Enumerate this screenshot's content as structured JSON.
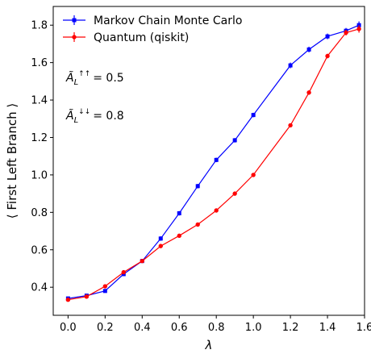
{
  "chart_data": {
    "type": "line",
    "xlabel": "λ",
    "ylabel": "⟨ First Left Branch ⟩",
    "xlim": [
      -0.08,
      1.6
    ],
    "ylim": [
      0.25,
      1.9
    ],
    "xticks": [
      0.0,
      0.2,
      0.4,
      0.6,
      0.8,
      1.0,
      1.2,
      1.4,
      1.6
    ],
    "xtick_labels": [
      "0.0",
      "0.2",
      "0.4",
      "0.6",
      "0.8",
      "1.0",
      "1.2",
      "1.4",
      "1.6"
    ],
    "yticks": [
      0.4,
      0.6,
      0.8,
      1.0,
      1.2,
      1.4,
      1.6,
      1.8
    ],
    "ytick_labels": [
      "0.4",
      "0.6",
      "0.8",
      "1.0",
      "1.2",
      "1.4",
      "1.6",
      "1.8"
    ],
    "grid": false,
    "legend_position": "top-left",
    "series": [
      {
        "name": "Markov Chain Monte Carlo",
        "color": "#0000ff",
        "marker": "square",
        "x": [
          0.0,
          0.1,
          0.2,
          0.3,
          0.4,
          0.5,
          0.6,
          0.7,
          0.8,
          0.9,
          1.0,
          1.2,
          1.3,
          1.4,
          1.5,
          1.57
        ],
        "y": [
          0.34,
          0.355,
          0.38,
          0.47,
          0.54,
          0.66,
          0.795,
          0.94,
          1.08,
          1.185,
          1.32,
          1.585,
          1.67,
          1.74,
          1.77,
          1.8
        ],
        "yerr": [
          0.008,
          0.008,
          0.008,
          0.01,
          0.01,
          0.012,
          0.012,
          0.012,
          0.012,
          0.012,
          0.012,
          0.015,
          0.015,
          0.015,
          0.015,
          0.02
        ]
      },
      {
        "name": "Quantum (qiskit)",
        "color": "#ff0000",
        "marker": "circle",
        "x": [
          0.0,
          0.1,
          0.2,
          0.3,
          0.4,
          0.5,
          0.6,
          0.7,
          0.8,
          0.9,
          1.0,
          1.2,
          1.3,
          1.4,
          1.5,
          1.57
        ],
        "y": [
          0.333,
          0.35,
          0.405,
          0.48,
          0.54,
          0.62,
          0.675,
          0.735,
          0.81,
          0.9,
          1.0,
          1.265,
          1.44,
          1.635,
          1.76,
          1.78
        ],
        "yerr": [
          0.008,
          0.008,
          0.008,
          0.008,
          0.008,
          0.008,
          0.008,
          0.008,
          0.008,
          0.008,
          0.008,
          0.01,
          0.012,
          0.012,
          0.015,
          0.02
        ]
      }
    ],
    "annotations": [
      {
        "base": "Ã",
        "sub": "L",
        "sup": "↑↑",
        "value": "= 0.5"
      },
      {
        "base": "Ã",
        "sub": "L",
        "sup": "↓↓",
        "value": "= 0.8"
      }
    ]
  }
}
